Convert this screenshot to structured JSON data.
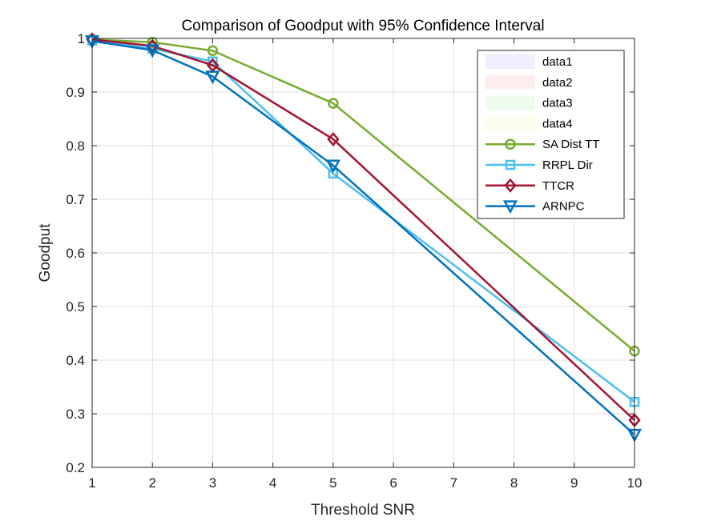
{
  "chart_data": {
    "type": "line",
    "title": "Comparison of Goodput with 95% Confidence Interval",
    "xlabel": "Threshold SNR",
    "ylabel": "Goodput",
    "xlim": [
      1,
      10
    ],
    "ylim": [
      0.2,
      1
    ],
    "xticks": [
      "1",
      "2",
      "3",
      "4",
      "5",
      "6",
      "7",
      "8",
      "9",
      "10"
    ],
    "yticks": [
      "0.2",
      "0.3",
      "0.4",
      "0.5",
      "0.6",
      "0.7",
      "0.8",
      "0.9",
      "1"
    ],
    "grid": true,
    "legend_position": "top-right",
    "x": [
      1,
      2,
      3,
      5,
      10
    ],
    "band_entries": [
      {
        "name": "data1",
        "color": "#eeeefc"
      },
      {
        "name": "data2",
        "color": "#fdeeee"
      },
      {
        "name": "data3",
        "color": "#eefcee"
      },
      {
        "name": "data4",
        "color": "#fdfdee"
      }
    ],
    "series": [
      {
        "name": "SA Dist TT",
        "color": "#77ac30",
        "marker": "circle",
        "values": [
          0.998,
          0.993,
          0.977,
          0.879,
          0.417
        ]
      },
      {
        "name": "RRPL Dir",
        "color": "#4dbeee",
        "marker": "square",
        "values": [
          0.996,
          0.981,
          0.957,
          0.748,
          0.322
        ]
      },
      {
        "name": "TTCR",
        "color": "#a2142f",
        "marker": "diamond",
        "values": [
          0.998,
          0.986,
          0.95,
          0.812,
          0.288
        ]
      },
      {
        "name": "ARNPC",
        "color": "#0072bd",
        "marker": "triangle-down",
        "values": [
          0.995,
          0.978,
          0.929,
          0.763,
          0.261
        ]
      }
    ]
  }
}
